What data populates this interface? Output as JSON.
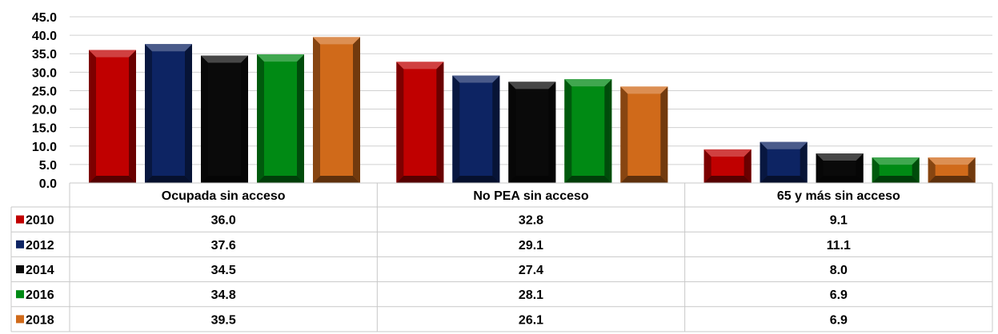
{
  "chart_data": {
    "type": "bar",
    "title": "",
    "xlabel": "",
    "ylabel": "",
    "ylim": [
      0,
      45
    ],
    "yticks": [
      "0.0",
      "5.0",
      "10.0",
      "15.0",
      "20.0",
      "25.0",
      "30.0",
      "35.0",
      "40.0",
      "45.0"
    ],
    "grid": true,
    "legend_placement": "data-table-left",
    "categories": [
      "Ocupada sin acceso",
      "No PEA sin acceso",
      "65 y más sin acceso"
    ],
    "series": [
      {
        "name": "2010",
        "values": [
          36.0,
          32.8,
          9.1
        ],
        "labels": [
          "36.0",
          "32.8",
          "9.1"
        ],
        "color": "#c00000"
      },
      {
        "name": "2012",
        "values": [
          37.6,
          29.1,
          11.1
        ],
        "labels": [
          "37.6",
          "29.1",
          "11.1"
        ],
        "color": "#0d2463"
      },
      {
        "name": "2014",
        "values": [
          34.5,
          27.4,
          8.0
        ],
        "labels": [
          "34.5",
          "27.4",
          "8.0"
        ],
        "color": "#0a0a0a"
      },
      {
        "name": "2016",
        "values": [
          34.8,
          28.1,
          6.9
        ],
        "labels": [
          "34.8",
          "28.1",
          "6.9"
        ],
        "color": "#008a14"
      },
      {
        "name": "2018",
        "values": [
          39.5,
          26.1,
          6.9
        ],
        "labels": [
          "39.5",
          "26.1",
          "6.9"
        ],
        "color": "#d06a1a"
      }
    ]
  }
}
